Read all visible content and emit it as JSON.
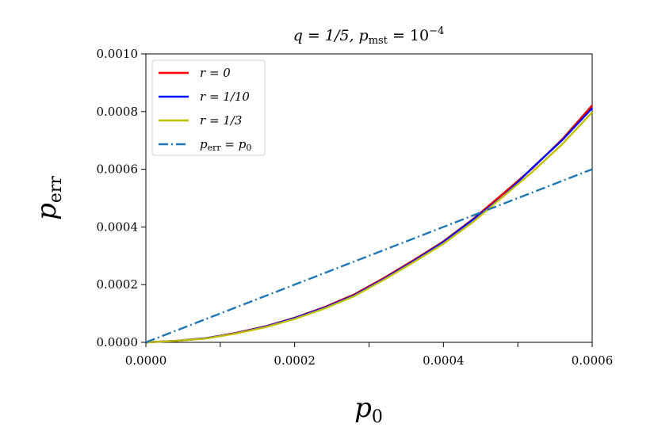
{
  "chart_data": {
    "type": "line",
    "title": "q = 1/5, p_mst = 10^-4",
    "title_parts": {
      "lead": "q = 1/5, p",
      "sub": "mst",
      "mid": " = 10",
      "sup": "−4"
    },
    "xlabel": "p_0",
    "xlabel_parts": {
      "main": "p",
      "sub": "0"
    },
    "ylabel": "p_err",
    "ylabel_parts": {
      "main": "p",
      "sub": "err"
    },
    "xlim": [
      0,
      0.0006
    ],
    "ylim": [
      0,
      0.001
    ],
    "xticks": [
      0,
      0.0002,
      0.0004,
      0.0006
    ],
    "xtick_labels": [
      "0.0000",
      "0.0002",
      "0.0004",
      "0.0006"
    ],
    "xminor": [
      0.0001,
      0.0003,
      0.0005
    ],
    "yticks": [
      0,
      0.0002,
      0.0004,
      0.0006,
      0.0008,
      0.001
    ],
    "ytick_labels": [
      "0.0000",
      "0.0002",
      "0.0004",
      "0.0006",
      "0.0008",
      "0.0010"
    ],
    "legend_position": "top-left",
    "grid": false,
    "series": [
      {
        "name": "r = 0",
        "color": "#ff0000",
        "style": "solid",
        "x": [
          0,
          4e-05,
          8e-05,
          0.00012,
          0.00016,
          0.0002,
          0.00024,
          0.00028,
          0.00032,
          0.00036,
          0.0004,
          0.00044,
          0.00048,
          0.00052,
          0.00056,
          0.0006
        ],
        "y": [
          0,
          5e-06,
          1.4e-05,
          3.2e-05,
          5.5e-05,
          8.5e-05,
          0.000122,
          0.000166,
          0.000223,
          0.000285,
          0.00035,
          0.000428,
          0.000515,
          0.000604,
          0.000705,
          0.000822
        ]
      },
      {
        "name": "r = 1/10",
        "color": "#0000ff",
        "style": "solid",
        "x": [
          0,
          4e-05,
          8e-05,
          0.00012,
          0.00016,
          0.0002,
          0.00024,
          0.00028,
          0.00032,
          0.00036,
          0.0004,
          0.00044,
          0.00048,
          0.00052,
          0.00056,
          0.0006
        ],
        "y": [
          0,
          5e-06,
          1.4e-05,
          3.1e-05,
          5.4e-05,
          8.4e-05,
          0.00012,
          0.000163,
          0.00022,
          0.000282,
          0.000348,
          0.000426,
          0.000506,
          0.000606,
          0.000702,
          0.000812
        ]
      },
      {
        "name": "r = 1/3",
        "color": "#bfbf00",
        "style": "solid",
        "x": [
          0,
          4e-05,
          8e-05,
          0.00012,
          0.00016,
          0.0002,
          0.00024,
          0.00028,
          0.00032,
          0.00036,
          0.0004,
          0.00044,
          0.00048,
          0.00052,
          0.00056,
          0.0006
        ],
        "y": [
          0,
          5e-06,
          1.3e-05,
          3e-05,
          5.2e-05,
          8.1e-05,
          0.000117,
          0.00016,
          0.000217,
          0.000278,
          0.000342,
          0.000418,
          0.000505,
          0.000592,
          0.000688,
          0.000798
        ]
      },
      {
        "name": "p_err = p_0",
        "color": "#1f77b4",
        "style": "dashdot",
        "x": [
          0,
          0.0006
        ],
        "y": [
          0,
          0.0006
        ]
      }
    ],
    "legend_entries": [
      {
        "main": "r = 0",
        "sub": "",
        "tail": ""
      },
      {
        "main": "r = 1/10",
        "sub": "",
        "tail": ""
      },
      {
        "main": "r = 1/3",
        "sub": "",
        "tail": ""
      },
      {
        "main": "p",
        "sub": "err",
        "tail": " = p",
        "sub2": "0"
      }
    ]
  }
}
